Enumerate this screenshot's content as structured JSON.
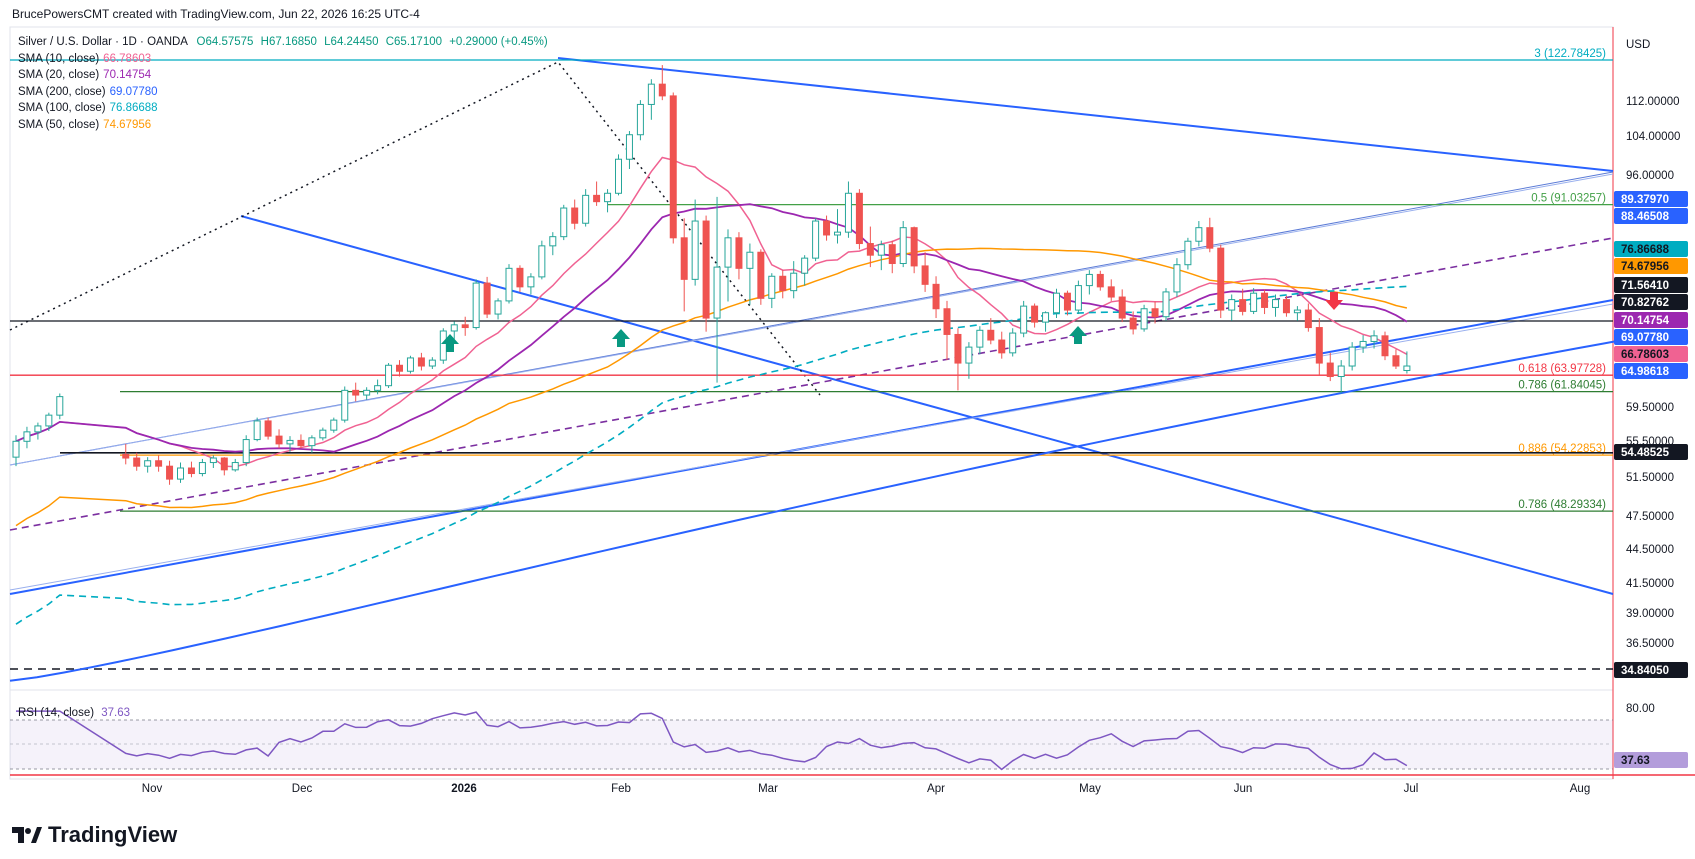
{
  "header": {
    "attribution": "BrucePowersCMT created with TradingView.com, Jun 22, 2026 16:25 UTC-4"
  },
  "instrument": {
    "title": "Silver / U.S. Dollar · 1D · OANDA",
    "open": "O64.57575",
    "high": "H67.16850",
    "low": "L64.24450",
    "close": "C65.17100",
    "change": "+0.29000 (+0.45%)"
  },
  "indicators": [
    {
      "label": "SMA (10, close)",
      "value": "66.78603",
      "color": "#f06292"
    },
    {
      "label": "SMA (20, close)",
      "value": "70.14754",
      "color": "#9c27b0"
    },
    {
      "label": "SMA (200, close)",
      "value": "69.07780",
      "color": "#2962ff"
    },
    {
      "label": "SMA (100, close)",
      "value": "76.86688",
      "color": "#00acc1"
    },
    {
      "label": "SMA (50, close)",
      "value": "74.67956",
      "color": "#ff9800"
    }
  ],
  "rsi": {
    "label": "RSI (14, close)",
    "value": "37.63"
  },
  "brand": {
    "name": "TradingView"
  },
  "currency": "USD",
  "colors": {
    "up": "#26a69a",
    "down": "#ef5350",
    "blue": "#2962ff",
    "green": "#388e3c",
    "red": "#f23645"
  },
  "chart_data": {
    "type": "candlestick",
    "x_axis_labels": [
      "Nov",
      "Dec",
      "2026",
      "Feb",
      "Mar",
      "Apr",
      "May",
      "Jun",
      "Jul",
      "Aug"
    ],
    "y_axis_ticks": [
      "112.00000",
      "104.00000",
      "96.00000",
      "59.50000",
      "55.50000",
      "51.50000",
      "47.50000",
      "44.50000",
      "41.50000",
      "39.00000",
      "36.50000"
    ],
    "rsi_axis_ticks": [
      "80.00"
    ],
    "ylim": [
      32,
      124
    ],
    "scale": "log",
    "price_tags": [
      {
        "value": "89.37970",
        "bg": "#2962ff",
        "fg": "#ffffff"
      },
      {
        "value": "88.46508",
        "bg": "#2962ff",
        "fg": "#ffffff"
      },
      {
        "value": "76.86688",
        "bg": "#00acc1",
        "fg": "#131722"
      },
      {
        "value": "74.67956",
        "bg": "#ff9800",
        "fg": "#131722"
      },
      {
        "value": "71.56410",
        "bg": "#131722",
        "fg": "#ffffff"
      },
      {
        "value": "70.82762",
        "bg": "#131722",
        "fg": "#ffffff"
      },
      {
        "value": "70.14754",
        "bg": "#9c27b0",
        "fg": "#ffffff"
      },
      {
        "value": "69.07780",
        "bg": "#2962ff",
        "fg": "#ffffff"
      },
      {
        "value": "66.78603",
        "bg": "#f06292",
        "fg": "#131722"
      },
      {
        "value": "64.98618",
        "bg": "#2962ff",
        "fg": "#ffffff"
      },
      {
        "value": "54.48525",
        "bg": "#131722",
        "fg": "#ffffff"
      },
      {
        "value": "34.84050",
        "bg": "#131722",
        "fg": "#ffffff"
      },
      {
        "value": "37.63",
        "bg": "#b39ddb",
        "fg": "#131722"
      }
    ],
    "fib_levels": [
      {
        "label": "3 (122.78425)",
        "value": 122.78425,
        "color": "#00acc1"
      },
      {
        "label": "0.5 (91.03257)",
        "value": 91.03257,
        "color": "#43a047"
      },
      {
        "label": "0.618 (63.97728)",
        "value": 63.97728,
        "color": "#f23645"
      },
      {
        "label": "0.786 (61.84045)",
        "value": 61.84045,
        "color": "#2e7d32"
      },
      {
        "label": "0.886 (54.22853)",
        "value": 54.22853,
        "color": "#ff9800"
      },
      {
        "label": "0.786 (48.29334)",
        "value": 48.29334,
        "color": "#2e7d32"
      }
    ],
    "horizontal_levels": [
      71.5641,
      54.48525,
      34.8405
    ],
    "candles": [
      [
        54.0,
        56.5,
        53.0,
        55.8
      ],
      [
        55.8,
        57.5,
        55.0,
        56.9
      ],
      [
        56.9,
        58.0,
        56.0,
        57.6
      ],
      [
        57.6,
        59.2,
        57.0,
        58.9
      ],
      [
        58.9,
        61.6,
        58.4,
        61.2
      ],
      [
        54.3,
        55.5,
        53.2,
        53.9
      ],
      [
        53.9,
        54.5,
        52.5,
        53.0
      ],
      [
        53.0,
        54.0,
        52.3,
        53.6
      ],
      [
        53.6,
        54.2,
        52.4,
        53.0
      ],
      [
        53.0,
        53.6,
        51.0,
        51.6
      ],
      [
        51.6,
        53.4,
        51.2,
        52.8
      ],
      [
        52.8,
        53.5,
        51.8,
        52.2
      ],
      [
        52.2,
        53.8,
        51.9,
        53.4
      ],
      [
        53.4,
        54.2,
        52.8,
        53.9
      ],
      [
        53.9,
        54.0,
        52.0,
        52.6
      ],
      [
        52.6,
        53.8,
        52.4,
        53.4
      ],
      [
        53.4,
        56.5,
        53.0,
        56.0
      ],
      [
        56.0,
        58.6,
        55.8,
        58.2
      ],
      [
        58.2,
        58.6,
        56.0,
        56.4
      ],
      [
        56.4,
        57.2,
        55.0,
        55.5
      ],
      [
        55.5,
        56.4,
        54.6,
        55.9
      ],
      [
        55.9,
        56.6,
        55.0,
        55.3
      ],
      [
        55.3,
        56.5,
        54.5,
        56.2
      ],
      [
        56.2,
        57.4,
        55.9,
        57.1
      ],
      [
        57.1,
        58.6,
        56.8,
        58.3
      ],
      [
        58.3,
        62.5,
        58.0,
        62.0
      ],
      [
        62.0,
        63.0,
        60.6,
        61.4
      ],
      [
        61.4,
        62.4,
        60.8,
        62.0
      ],
      [
        62.0,
        63.4,
        61.5,
        62.6
      ],
      [
        62.6,
        65.6,
        62.3,
        65.3
      ],
      [
        65.3,
        66.0,
        63.8,
        64.5
      ],
      [
        64.5,
        66.6,
        64.2,
        66.3
      ],
      [
        66.3,
        67.0,
        64.6,
        65.2
      ],
      [
        65.2,
        66.4,
        64.8,
        66.0
      ],
      [
        66.0,
        70.5,
        65.5,
        70.1
      ],
      [
        70.1,
        71.5,
        68.9,
        71.0
      ],
      [
        71.0,
        72.2,
        69.4,
        70.6
      ],
      [
        70.6,
        78.0,
        70.3,
        77.4
      ],
      [
        77.4,
        78.4,
        72.0,
        72.6
      ],
      [
        72.6,
        75.0,
        71.8,
        74.6
      ],
      [
        74.6,
        80.5,
        74.2,
        79.8
      ],
      [
        79.8,
        80.3,
        76.0,
        76.8
      ],
      [
        76.8,
        79.0,
        75.6,
        78.4
      ],
      [
        78.4,
        84.5,
        78.0,
        83.6
      ],
      [
        83.6,
        86.0,
        82.0,
        85.2
      ],
      [
        85.2,
        91.0,
        84.6,
        90.4
      ],
      [
        90.4,
        92.0,
        86.5,
        87.6
      ],
      [
        87.6,
        94.0,
        87.0,
        92.8
      ],
      [
        92.8,
        95.5,
        90.8,
        91.6
      ],
      [
        91.6,
        94.0,
        89.6,
        93.2
      ],
      [
        93.2,
        101.0,
        92.8,
        100.0
      ],
      [
        100.0,
        106.0,
        98.0,
        105.2
      ],
      [
        105.2,
        113.0,
        104.0,
        112.0
      ],
      [
        112.0,
        118.0,
        108.5,
        116.8
      ],
      [
        116.8,
        121.5,
        113.0,
        114.0
      ],
      [
        114.0,
        114.8,
        84.0,
        85.0
      ],
      [
        85.0,
        88.5,
        73.0,
        78.0
      ],
      [
        78.0,
        92.0,
        77.0,
        88.0
      ],
      [
        88.0,
        89.0,
        70.0,
        72.0
      ],
      [
        72.0,
        92.5,
        63.0,
        80.0
      ],
      [
        80.0,
        86.5,
        74.5,
        85.0
      ],
      [
        85.0,
        86.0,
        78.0,
        79.8
      ],
      [
        79.8,
        84.0,
        74.0,
        82.5
      ],
      [
        82.5,
        83.0,
        74.0,
        75.0
      ],
      [
        75.0,
        79.0,
        73.5,
        78.5
      ],
      [
        78.5,
        79.5,
        75.0,
        76.2
      ],
      [
        76.2,
        81.0,
        75.0,
        79.0
      ],
      [
        79.0,
        82.0,
        77.0,
        81.5
      ],
      [
        81.5,
        88.5,
        81.0,
        88.0
      ],
      [
        88.0,
        89.0,
        84.5,
        85.5
      ],
      [
        85.5,
        90.2,
        84.0,
        86.0
      ],
      [
        86.0,
        95.5,
        85.0,
        93.2
      ],
      [
        93.2,
        94.0,
        83.0,
        84.0
      ],
      [
        84.0,
        87.0,
        80.0,
        82.0
      ],
      [
        82.0,
        84.5,
        79.5,
        83.8
      ],
      [
        83.8,
        84.5,
        79.0,
        80.6
      ],
      [
        80.6,
        88.0,
        80.0,
        86.8
      ],
      [
        86.8,
        87.0,
        79.0,
        80.2
      ],
      [
        80.2,
        82.5,
        76.0,
        77.2
      ],
      [
        77.2,
        78.5,
        72.0,
        73.4
      ],
      [
        73.4,
        74.6,
        66.0,
        69.6
      ],
      [
        69.6,
        70.5,
        62.0,
        65.6
      ],
      [
        65.6,
        68.5,
        63.5,
        67.8
      ],
      [
        67.8,
        70.8,
        66.8,
        70.2
      ],
      [
        70.2,
        72.0,
        68.2,
        68.8
      ],
      [
        68.8,
        70.0,
        66.2,
        67.0
      ],
      [
        67.0,
        70.5,
        66.5,
        69.8
      ],
      [
        69.8,
        74.6,
        69.2,
        73.8
      ],
      [
        73.8,
        74.2,
        70.6,
        71.4
      ],
      [
        71.4,
        73.0,
        70.0,
        72.8
      ],
      [
        72.8,
        76.5,
        72.0,
        75.8
      ],
      [
        75.8,
        76.2,
        72.4,
        73.2
      ],
      [
        73.2,
        77.8,
        72.6,
        77.0
      ],
      [
        77.0,
        79.5,
        75.6,
        78.8
      ],
      [
        78.8,
        79.4,
        76.2,
        76.8
      ],
      [
        76.8,
        78.0,
        74.6,
        75.2
      ],
      [
        75.2,
        76.4,
        71.4,
        72.0
      ],
      [
        72.0,
        73.0,
        69.6,
        70.4
      ],
      [
        70.4,
        74.0,
        70.0,
        73.4
      ],
      [
        73.4,
        74.5,
        71.2,
        72.2
      ],
      [
        72.2,
        76.6,
        71.6,
        76.0
      ],
      [
        76.0,
        81.5,
        75.2,
        80.4
      ],
      [
        80.4,
        85.0,
        79.6,
        84.4
      ],
      [
        84.4,
        88.0,
        83.5,
        86.8
      ],
      [
        86.8,
        88.6,
        82.5,
        83.2
      ],
      [
        83.2,
        83.8,
        72.0,
        73.2
      ],
      [
        73.2,
        75.6,
        71.6,
        74.8
      ],
      [
        74.8,
        76.5,
        72.4,
        73.0
      ],
      [
        73.0,
        76.6,
        72.6,
        75.8
      ],
      [
        75.8,
        76.4,
        72.6,
        73.6
      ],
      [
        73.6,
        75.6,
        72.2,
        74.8
      ],
      [
        74.8,
        75.4,
        72.2,
        72.8
      ],
      [
        72.8,
        73.8,
        71.6,
        73.2
      ],
      [
        73.2,
        74.2,
        70.0,
        70.6
      ],
      [
        70.6,
        72.0,
        64.0,
        65.6
      ],
      [
        65.6,
        67.0,
        63.2,
        63.8
      ],
      [
        63.8,
        66.0,
        61.6,
        65.2
      ],
      [
        65.2,
        68.5,
        64.6,
        67.8
      ],
      [
        67.8,
        69.5,
        67.0,
        68.6
      ],
      [
        68.6,
        70.2,
        67.6,
        69.4
      ],
      [
        69.4,
        70.0,
        66.0,
        66.6
      ],
      [
        66.6,
        67.5,
        64.8,
        65.2
      ],
      [
        64.6,
        67.2,
        64.2,
        65.2
      ]
    ],
    "sma_values_last": {
      "sma10": 66.78603,
      "sma20": 70.14754,
      "sma50": 74.67956,
      "sma100": 76.86688,
      "sma200": 69.0778
    }
  }
}
